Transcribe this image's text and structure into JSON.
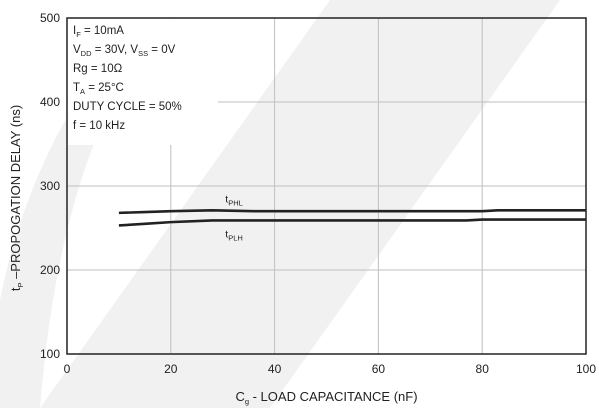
{
  "chart_data": {
    "type": "line",
    "xlabel": "C_g - LOAD CAPACITANCE (nF)",
    "ylabel": "t_P – PROPOGATION DELAY (ns)",
    "xlim": [
      0,
      100
    ],
    "ylim": [
      100,
      500
    ],
    "xticks": [
      0,
      20,
      40,
      60,
      80,
      100
    ],
    "yticks": [
      100,
      200,
      300,
      400,
      500
    ],
    "grid": true,
    "conditions": [
      "IF = 10mA",
      "VDD = 30V, VSS = 0V",
      "Rg = 10Ω",
      "TA = 25°C",
      "DUTY CYCLE = 50%",
      "f = 10 kHz"
    ],
    "series": [
      {
        "name": "tPHL",
        "x": [
          10,
          15,
          20,
          28,
          36,
          50,
          60,
          70,
          80,
          83,
          90,
          100
        ],
        "y": [
          268,
          269,
          270,
          271,
          270,
          270,
          270,
          270,
          270,
          271,
          271,
          271
        ]
      },
      {
        "name": "tPLH",
        "x": [
          10,
          15,
          20,
          28,
          36,
          50,
          60,
          70,
          77,
          80,
          90,
          100
        ],
        "y": [
          253,
          255,
          257,
          259,
          259,
          259,
          259,
          259,
          259,
          260,
          260,
          260
        ]
      }
    ]
  },
  "colors": {
    "line": "#222222",
    "grid": "#bfbfbf",
    "frame": "#222222",
    "watermark": "#f1f1f1"
  }
}
